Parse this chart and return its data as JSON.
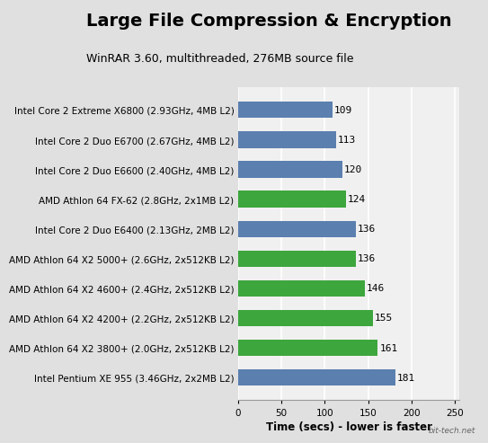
{
  "title": "Large File Compression & Encryption",
  "subtitle": "WinRAR 3.60, multithreaded, 276MB source file",
  "xlabel": "Time (secs) - lower is faster",
  "categories": [
    "Intel Core 2 Extreme X6800 (2.93GHz, 4MB L2)",
    "Intel Core 2 Duo E6700 (2.67GHz, 4MB L2)",
    "Intel Core 2 Duo E6600 (2.40GHz, 4MB L2)",
    "AMD Athlon 64 FX-62 (2.8GHz, 2x1MB L2)",
    "Intel Core 2 Duo E6400 (2.13GHz, 2MB L2)",
    "AMD Athlon 64 X2 5000+ (2.6GHz, 2x512KB L2)",
    "AMD Athlon 64 X2 4600+ (2.4GHz, 2x512KB L2)",
    "AMD Athlon 64 X2 4200+ (2.2GHz, 2x512KB L2)",
    "AMD Athlon 64 X2 3800+ (2.0GHz, 2x512KB L2)",
    "Intel Pentium XE 955 (3.46GHz, 2x2MB L2)"
  ],
  "values": [
    109,
    113,
    120,
    124,
    136,
    136,
    146,
    155,
    161,
    181
  ],
  "colors": [
    "#5b7faf",
    "#5b7faf",
    "#5b7faf",
    "#3da63d",
    "#5b7faf",
    "#3da63d",
    "#3da63d",
    "#3da63d",
    "#3da63d",
    "#5b7faf"
  ],
  "xlim": [
    0,
    250
  ],
  "xticks": [
    0,
    50,
    100,
    150,
    200,
    250
  ],
  "bar_height": 0.55,
  "title_fontsize": 14,
  "subtitle_fontsize": 9,
  "label_fontsize": 7.5,
  "value_fontsize": 8,
  "xlabel_fontsize": 8.5,
  "bg_color": "#e0e0e0",
  "chart_bg": "#f0f0f0",
  "header_bg": "#c8c8c8",
  "grid_color": "#ffffff",
  "title_color": "#000000",
  "watermark": "bit-tech.net"
}
